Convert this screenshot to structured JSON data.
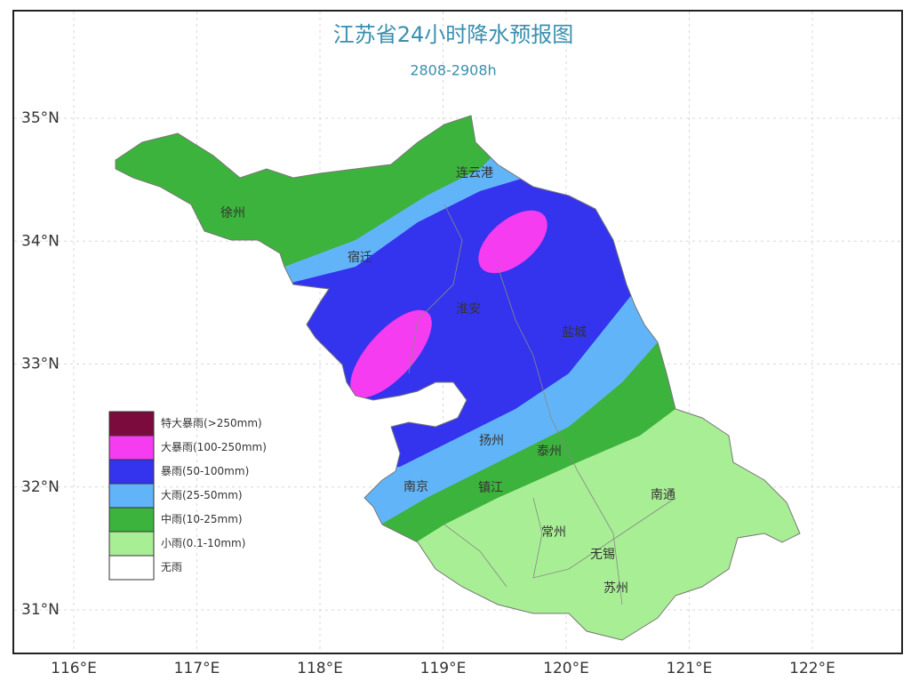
{
  "header": {
    "title": "江苏省24小时降水预报图",
    "subtitle": "2808-2908h"
  },
  "latitudes": [
    {
      "value": 35,
      "label": "35°N"
    },
    {
      "value": 34,
      "label": "34°N"
    },
    {
      "value": 33,
      "label": "33°N"
    },
    {
      "value": 32,
      "label": "32°N"
    },
    {
      "value": 31,
      "label": "31°N"
    }
  ],
  "longitudes": [
    {
      "value": 116,
      "label": "116°E"
    },
    {
      "value": 117,
      "label": "117°E"
    },
    {
      "value": 118,
      "label": "118°E"
    },
    {
      "value": 119,
      "label": "119°E"
    },
    {
      "value": 120,
      "label": "120°E"
    },
    {
      "value": 121,
      "label": "121°E"
    },
    {
      "value": 122,
      "label": "122°E"
    }
  ],
  "legend": [
    {
      "label": "特大暴雨(>250mm)",
      "color": "#7b0b3d"
    },
    {
      "label": "大暴雨(100-250mm)",
      "color": "#f53cf0"
    },
    {
      "label": "暴雨(50-100mm)",
      "color": "#3434ee"
    },
    {
      "label": "大雨(25-50mm)",
      "color": "#62b4f8"
    },
    {
      "label": "中雨(10-25mm)",
      "color": "#3cb33c"
    },
    {
      "label": "小雨(0.1-10mm)",
      "color": "#a8ee94"
    },
    {
      "label": "无雨",
      "color": "#ffffff"
    }
  ],
  "cities": [
    "徐州",
    "连云港",
    "宿迁",
    "淮安",
    "盐城",
    "扬州",
    "泰州",
    "南京",
    "镇江",
    "南通",
    "常州",
    "无锡",
    "苏州"
  ]
}
